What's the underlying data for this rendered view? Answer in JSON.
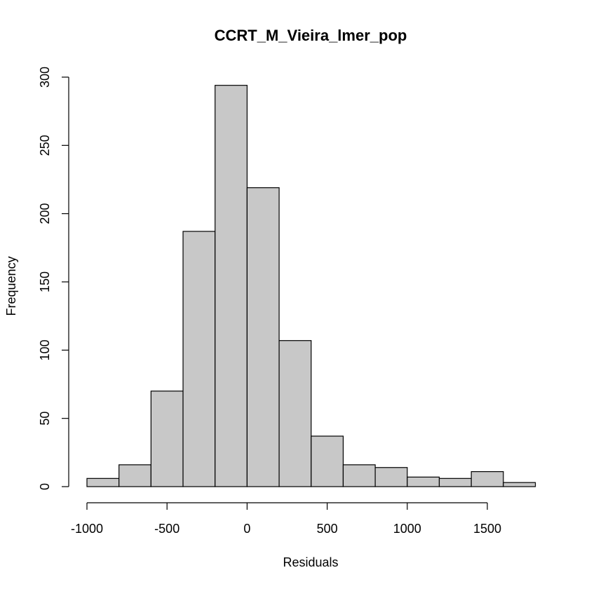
{
  "chart_data": {
    "type": "bar",
    "title": "CCRT_M_Vieira_lmer_pop",
    "xlabel": "Residuals",
    "ylabel": "Frequency",
    "bins": [
      {
        "x0": -1000,
        "x1": -800,
        "count": 6
      },
      {
        "x0": -800,
        "x1": -600,
        "count": 16
      },
      {
        "x0": -600,
        "x1": -400,
        "count": 70
      },
      {
        "x0": -400,
        "x1": -200,
        "count": 187
      },
      {
        "x0": -200,
        "x1": 0,
        "count": 294
      },
      {
        "x0": 0,
        "x1": 200,
        "count": 219
      },
      {
        "x0": 200,
        "x1": 400,
        "count": 107
      },
      {
        "x0": 400,
        "x1": 600,
        "count": 37
      },
      {
        "x0": 600,
        "x1": 800,
        "count": 16
      },
      {
        "x0": 800,
        "x1": 1000,
        "count": 14
      },
      {
        "x0": 1000,
        "x1": 1200,
        "count": 7
      },
      {
        "x0": 1200,
        "x1": 1400,
        "count": 6
      },
      {
        "x0": 1400,
        "x1": 1600,
        "count": 11
      },
      {
        "x0": 1600,
        "x1": 1800,
        "count": 3
      }
    ],
    "x_ticks": [
      -1000,
      -500,
      0,
      500,
      1000,
      1500
    ],
    "x_tick_labels": [
      "-1000",
      "-500",
      "0",
      "500",
      "1000",
      "1500"
    ],
    "y_ticks": [
      0,
      50,
      100,
      150,
      200,
      250,
      300
    ],
    "y_tick_labels": [
      "0",
      "50",
      "100",
      "150",
      "200",
      "250",
      "300"
    ],
    "xlim": [
      -1000,
      1800
    ],
    "ylim": [
      0,
      300
    ],
    "bar_color": "#c8c8c8",
    "edge_color": "#000000",
    "grid": false,
    "legend": "none"
  }
}
